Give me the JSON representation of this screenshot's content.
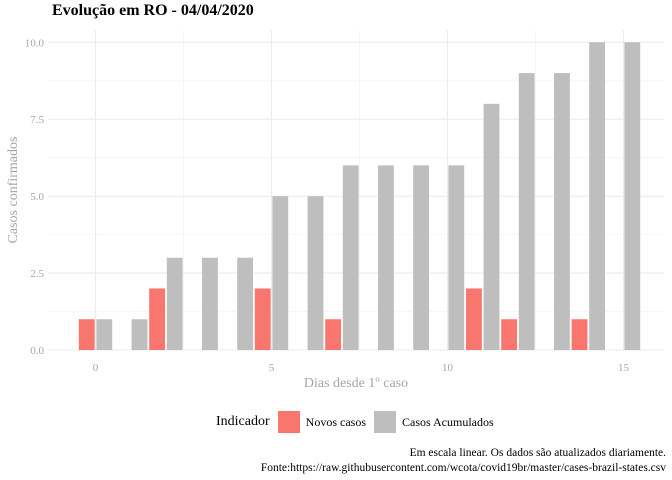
{
  "chart_data": {
    "type": "bar",
    "title": "Evolução em RO  -  04/04/2020",
    "xlabel": "Dias desde 1º caso",
    "ylabel": "Casos confirmados",
    "x_ticks": [
      0,
      5,
      10,
      15
    ],
    "y_ticks": [
      "0.0",
      "2.5",
      "5.0",
      "7.5",
      "10.0"
    ],
    "xlim": [
      -1.35,
      16.15
    ],
    "ylim": [
      0,
      10.4
    ],
    "grid": true,
    "legend_position": "bottom",
    "legend_title": "Indicador",
    "x": [
      0,
      1,
      2,
      3,
      4,
      5,
      6,
      7,
      8,
      9,
      10,
      11,
      12,
      13,
      14,
      15
    ],
    "series": [
      {
        "name": "Novos casos",
        "color": "#F8766D",
        "values": [
          1,
          0,
          2,
          0,
          0,
          2,
          0,
          1,
          0,
          0,
          0,
          2,
          1,
          0,
          1,
          0
        ]
      },
      {
        "name": "Casos Acumulados",
        "color": "#BEBEBE",
        "values": [
          1,
          1,
          3,
          3,
          3,
          5,
          5,
          6,
          6,
          6,
          6,
          8,
          9,
          9,
          10,
          10
        ]
      }
    ],
    "caption": [
      "Em escala linear. Os dados são atualizados diariamente.",
      "Fonte:https://raw.githubusercontent.com/wcota/covid19br/master/cases-brazil-states.csv"
    ]
  }
}
